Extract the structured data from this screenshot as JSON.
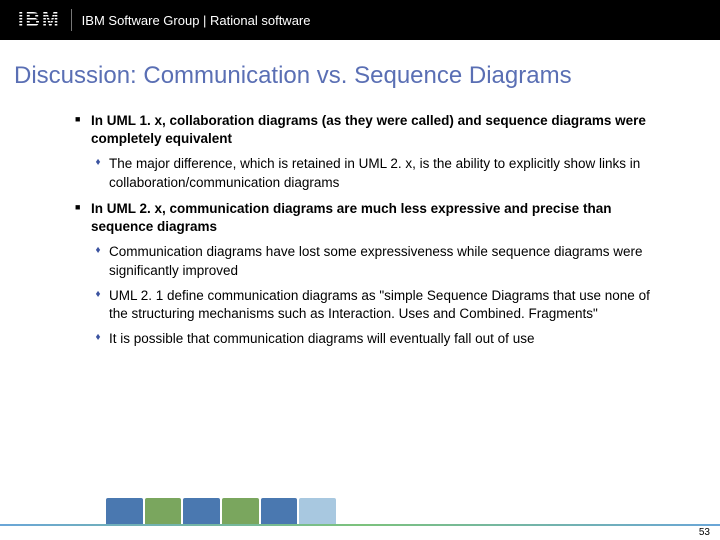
{
  "header": {
    "logo_text": "IBM",
    "group_text": "IBM Software Group | Rational software"
  },
  "title": "Discussion: Communication vs. Sequence Diagrams",
  "bullets": [
    {
      "text": "In UML 1. x, collaboration diagrams (as they were called) and sequence diagrams were completely equivalent",
      "sub": [
        "The major difference, which is retained in UML 2. x, is the ability to explicitly show links in collaboration/communication diagrams"
      ]
    },
    {
      "text": "In UML 2. x, communication diagrams are much less expressive and precise than sequence diagrams",
      "sub": [
        "Communication diagrams have lost some expressiveness while sequence diagrams were significantly improved",
        "UML 2. 1 define communication diagrams as \"simple Sequence Diagrams that use none of the structuring mechanisms such as Interaction. Uses and Combined. Fragments\"",
        "It is possible that communication diagrams will eventually fall out of use"
      ]
    }
  ],
  "footer": {
    "page_number": "53",
    "art_colors": [
      "#4a78b0",
      "#7aa65e",
      "#4a78b0",
      "#7aa65e",
      "#4a78b0",
      "#a8c8e0"
    ]
  },
  "colors": {
    "title": "#5a6fb4",
    "sub_bullet": "#3b53a0",
    "header_bg": "#000000"
  }
}
